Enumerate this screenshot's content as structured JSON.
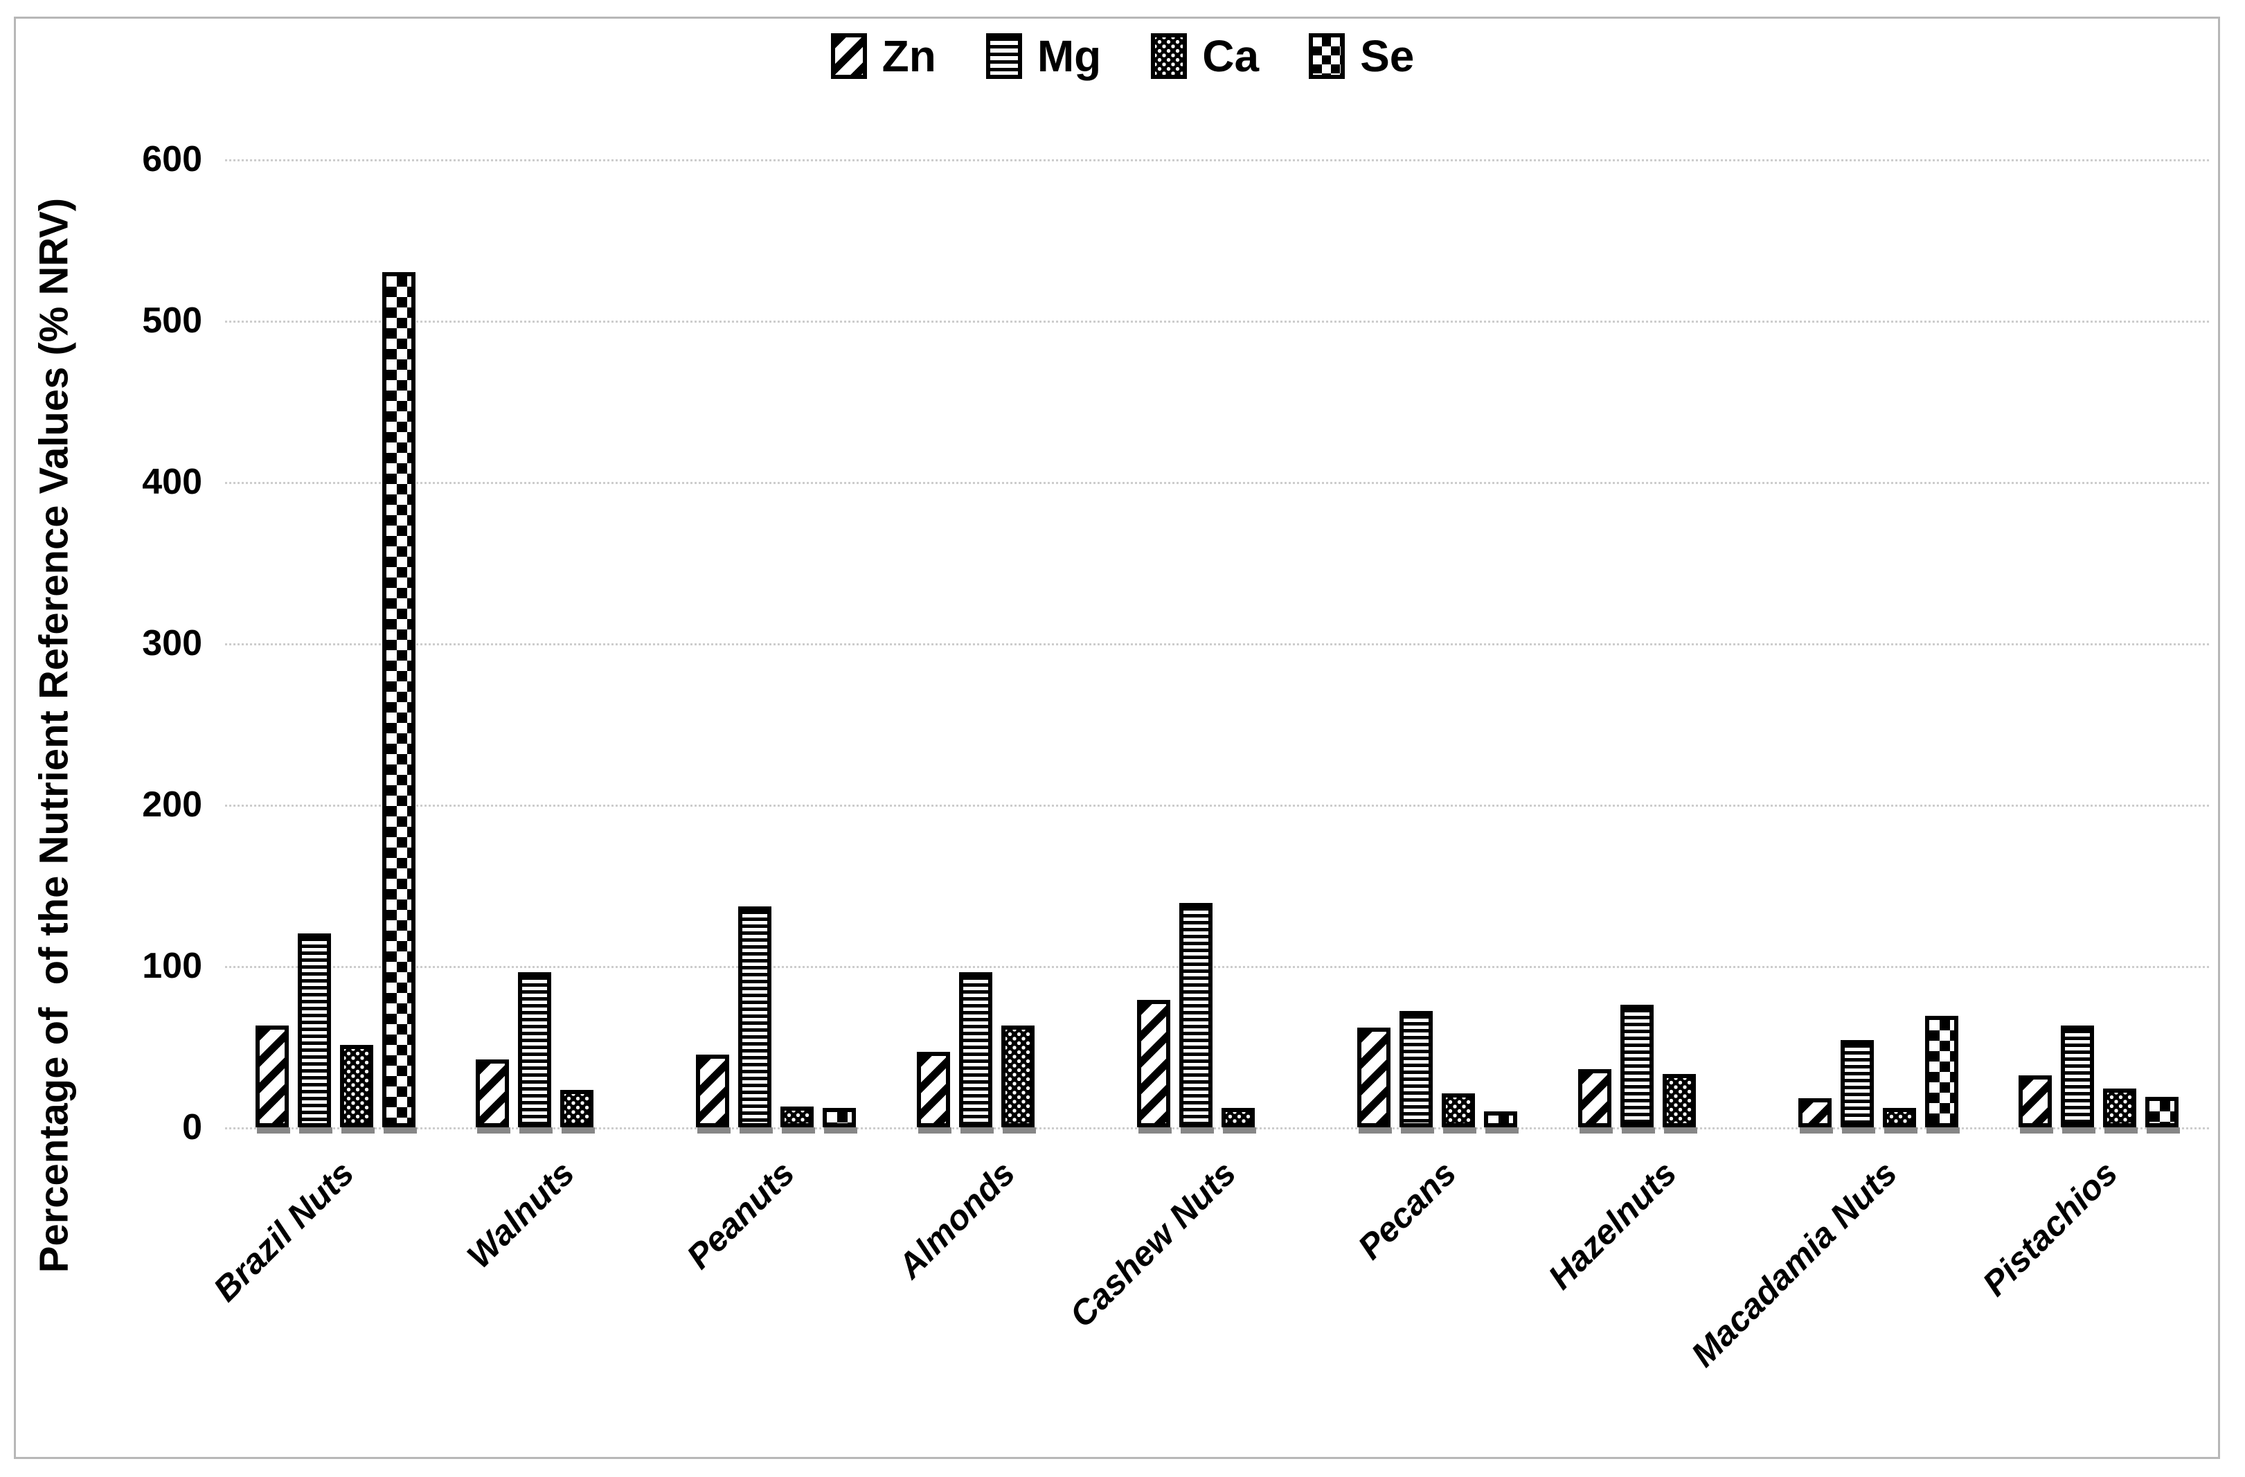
{
  "colors": {
    "bar_fill": "#000000",
    "bar_outline": "#000000",
    "background": "#ffffff",
    "gridline": "#cdcdcd",
    "bar_shadow": "#878787",
    "frame_border": "#b7b7b7"
  },
  "chart_data": {
    "type": "bar",
    "title": "",
    "xlabel": "",
    "ylabel": "Percentage of  of the Nutrient Reference Values (% NRV)",
    "ylim": [
      0,
      600
    ],
    "yticks": [
      0,
      100,
      200,
      300,
      400,
      500,
      600
    ],
    "grid": "horizontal dotted gridlines",
    "legend_position": "top-center",
    "categories": [
      "Brazil Nuts",
      "Walnuts",
      "Peanuts",
      "Almonds",
      "Cashew Nuts",
      "Pecans",
      "Hazelnuts",
      "Macadamia Nuts",
      "Pistachios"
    ],
    "series": [
      {
        "name": "Zn",
        "pattern": "diagonal-hatch",
        "values": [
          63,
          42,
          45,
          47,
          79,
          62,
          36,
          18,
          32
        ]
      },
      {
        "name": "Mg",
        "pattern": "horizontal-lines",
        "values": [
          120,
          96,
          137,
          96,
          139,
          72,
          76,
          54,
          63
        ]
      },
      {
        "name": "Ca",
        "pattern": "dots",
        "values": [
          51,
          23,
          13,
          63,
          12,
          21,
          33,
          12,
          24
        ]
      },
      {
        "name": "Se",
        "pattern": "checkerboard",
        "values": [
          530,
          0,
          12,
          0,
          0,
          10,
          0,
          69,
          19
        ]
      }
    ]
  }
}
